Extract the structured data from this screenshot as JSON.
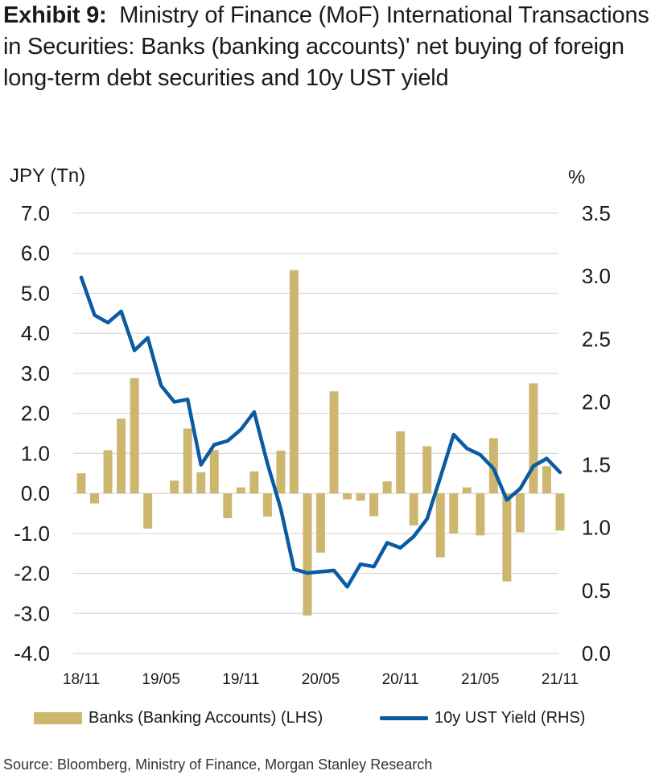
{
  "title_bold": "Exhibit 9:",
  "title_rest": "Ministry of Finance (MoF) International Transactions in Securities: Banks (banking accounts)' net buying of foreign long-term debt securities and 10y UST yield",
  "source": "Source: Bloomberg, Ministry of Finance, Morgan Stanley Research",
  "colors": {
    "bar": "#CDB76E",
    "line": "#0B5BA3"
  },
  "chart_data": {
    "type": "bar+line",
    "ylabel_left": "JPY (Tn)",
    "ylabel_right": "%",
    "ylim_left": [
      -4.0,
      7.0
    ],
    "ylim_right": [
      0.0,
      3.5
    ],
    "yticks_left": [
      "7.0",
      "6.0",
      "5.0",
      "4.0",
      "3.0",
      "2.0",
      "1.0",
      "0.0",
      "-1.0",
      "-2.0",
      "-3.0",
      "-4.0"
    ],
    "yticks_right": [
      "3.5",
      "3.0",
      "2.5",
      "2.0",
      "1.5",
      "1.0",
      "0.5",
      "0.0"
    ],
    "xticks": [
      "18/11",
      "19/05",
      "19/11",
      "20/05",
      "20/11",
      "21/05",
      "21/11"
    ],
    "x": [
      "18/11",
      "18/12",
      "19/01",
      "19/02",
      "19/03",
      "19/04",
      "19/05",
      "19/06",
      "19/07",
      "19/08",
      "19/09",
      "19/10",
      "19/11",
      "19/12",
      "20/01",
      "20/02",
      "20/03",
      "20/04",
      "20/05",
      "20/06",
      "20/07",
      "20/08",
      "20/09",
      "20/10",
      "20/11",
      "20/12",
      "21/01",
      "21/02",
      "21/03",
      "21/04",
      "21/05",
      "21/06",
      "21/07",
      "21/08",
      "21/09",
      "21/10",
      "21/11"
    ],
    "series": [
      {
        "name": "Banks (Banking Accounts) (LHS)",
        "type": "bar",
        "axis": "left",
        "values": [
          0.5,
          -0.25,
          1.08,
          1.87,
          2.88,
          -0.88,
          0.0,
          0.32,
          1.62,
          0.53,
          1.08,
          -0.62,
          0.15,
          0.55,
          -0.58,
          1.07,
          5.58,
          -3.05,
          -1.48,
          2.55,
          -0.15,
          -0.18,
          -0.57,
          0.3,
          1.55,
          -0.8,
          1.18,
          -1.6,
          -1.0,
          0.15,
          -1.05,
          1.38,
          -2.2,
          -0.97,
          2.75,
          0.68,
          -0.93
        ]
      },
      {
        "name": "10y UST Yield (RHS)",
        "type": "line",
        "axis": "right",
        "values": [
          2.99,
          2.69,
          2.63,
          2.72,
          2.41,
          2.51,
          2.13,
          2.0,
          2.02,
          1.5,
          1.66,
          1.69,
          1.78,
          1.92,
          1.51,
          1.15,
          0.67,
          0.64,
          0.65,
          0.66,
          0.53,
          0.71,
          0.69,
          0.88,
          0.84,
          0.93,
          1.07,
          1.4,
          1.74,
          1.63,
          1.58,
          1.47,
          1.22,
          1.31,
          1.49,
          1.55,
          1.44
        ]
      }
    ]
  }
}
